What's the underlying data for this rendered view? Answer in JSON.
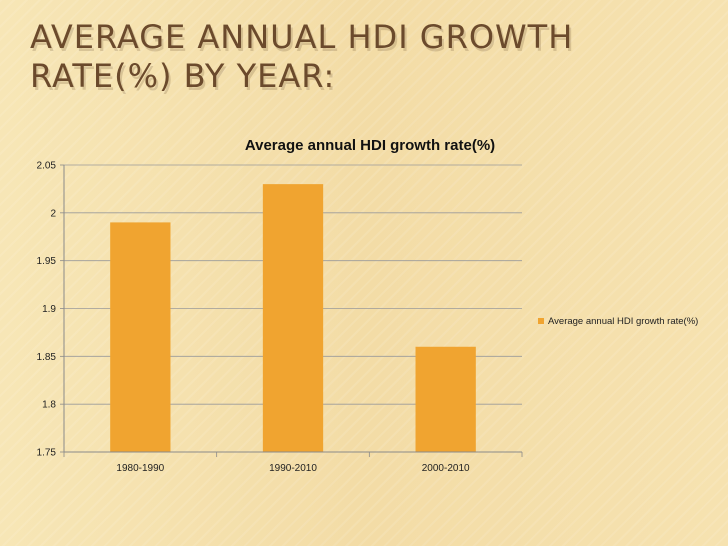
{
  "slide": {
    "title": "Average annual HDI growth rate(%) by year:"
  },
  "colors": {
    "bar": "#f0a430",
    "grid": "#9a9a9a",
    "axis": "#8a8a8a"
  },
  "chart_data": {
    "type": "bar",
    "title": "Average annual HDI growth rate(%)",
    "categories": [
      "1980-1990",
      "1990-2010",
      "2000-2010"
    ],
    "series": [
      {
        "name": "Average annual HDI growth rate(%)",
        "values": [
          1.99,
          2.03,
          1.86
        ]
      }
    ],
    "ylim": [
      1.75,
      2.05
    ],
    "yticks": [
      1.75,
      1.8,
      1.85,
      1.9,
      1.95,
      2,
      2.05
    ],
    "ytick_labels": [
      "1.75",
      "1.8",
      "1.85",
      "1.9",
      "1.95",
      "2",
      "2.05"
    ],
    "grid": true,
    "legend": "right",
    "xlabel": "",
    "ylabel": ""
  }
}
